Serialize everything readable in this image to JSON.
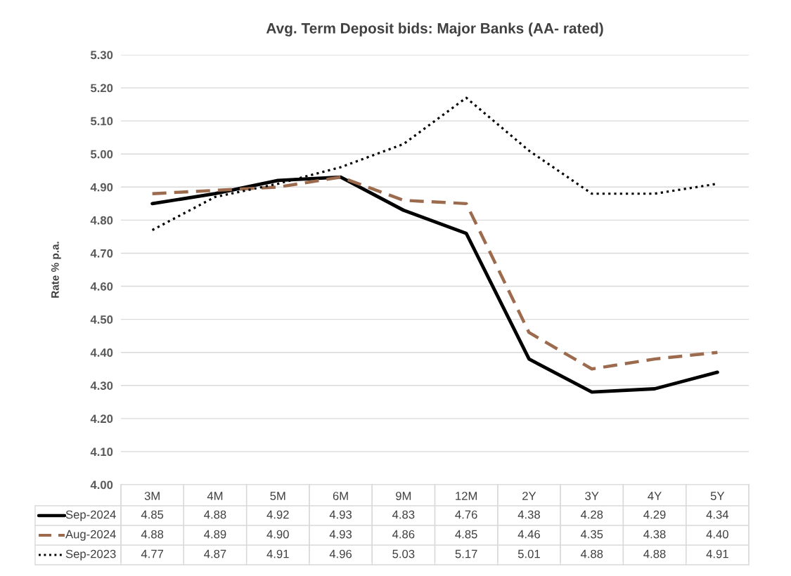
{
  "chart_data": {
    "type": "line",
    "title": "Avg. Term Deposit bids: Major Banks (AA- rated)",
    "ylabel": "Rate % p.a.",
    "categories": [
      "3M",
      "4M",
      "5M",
      "6M",
      "9M",
      "12M",
      "2Y",
      "3Y",
      "4Y",
      "5Y"
    ],
    "series": [
      {
        "name": "Sep-2024",
        "color": "#000000",
        "line_style": "solid",
        "values": [
          4.85,
          4.88,
          4.92,
          4.93,
          4.83,
          4.76,
          4.38,
          4.28,
          4.29,
          4.34
        ],
        "value_labels": [
          "4.85",
          "4.88",
          "4.92",
          "4.93",
          "4.83",
          "4.76",
          "4.38",
          "4.28",
          "4.29",
          "4.34"
        ]
      },
      {
        "name": "Aug-2024",
        "color": "#9c6b4e",
        "line_style": "dashed",
        "values": [
          4.88,
          4.89,
          4.9,
          4.93,
          4.86,
          4.85,
          4.46,
          4.35,
          4.38,
          4.4
        ],
        "value_labels": [
          "4.88",
          "4.89",
          "4.90",
          "4.93",
          "4.86",
          "4.85",
          "4.46",
          "4.35",
          "4.38",
          "4.40"
        ]
      },
      {
        "name": "Sep-2023",
        "color": "#000000",
        "line_style": "dotted",
        "values": [
          4.77,
          4.87,
          4.91,
          4.96,
          5.03,
          5.17,
          5.01,
          4.88,
          4.88,
          4.91
        ],
        "value_labels": [
          "4.77",
          "4.87",
          "4.91",
          "4.96",
          "5.03",
          "5.17",
          "5.01",
          "4.88",
          "4.88",
          "4.91"
        ]
      }
    ],
    "ylim": [
      4.0,
      5.3
    ],
    "yticks": [
      {
        "value": 4.0,
        "label": "4.00"
      },
      {
        "value": 4.1,
        "label": "4.10"
      },
      {
        "value": 4.2,
        "label": "4.20"
      },
      {
        "value": 4.3,
        "label": "4.30"
      },
      {
        "value": 4.4,
        "label": "4.40"
      },
      {
        "value": 4.5,
        "label": "4.50"
      },
      {
        "value": 4.6,
        "label": "4.60"
      },
      {
        "value": 4.7,
        "label": "4.70"
      },
      {
        "value": 4.8,
        "label": "4.80"
      },
      {
        "value": 4.9,
        "label": "4.90"
      },
      {
        "value": 5.0,
        "label": "5.00"
      },
      {
        "value": 5.1,
        "label": "5.10"
      },
      {
        "value": 5.2,
        "label": "5.20"
      },
      {
        "value": 5.3,
        "label": "5.30"
      }
    ],
    "grid": "y",
    "legend": "bottom",
    "marker": "none"
  }
}
